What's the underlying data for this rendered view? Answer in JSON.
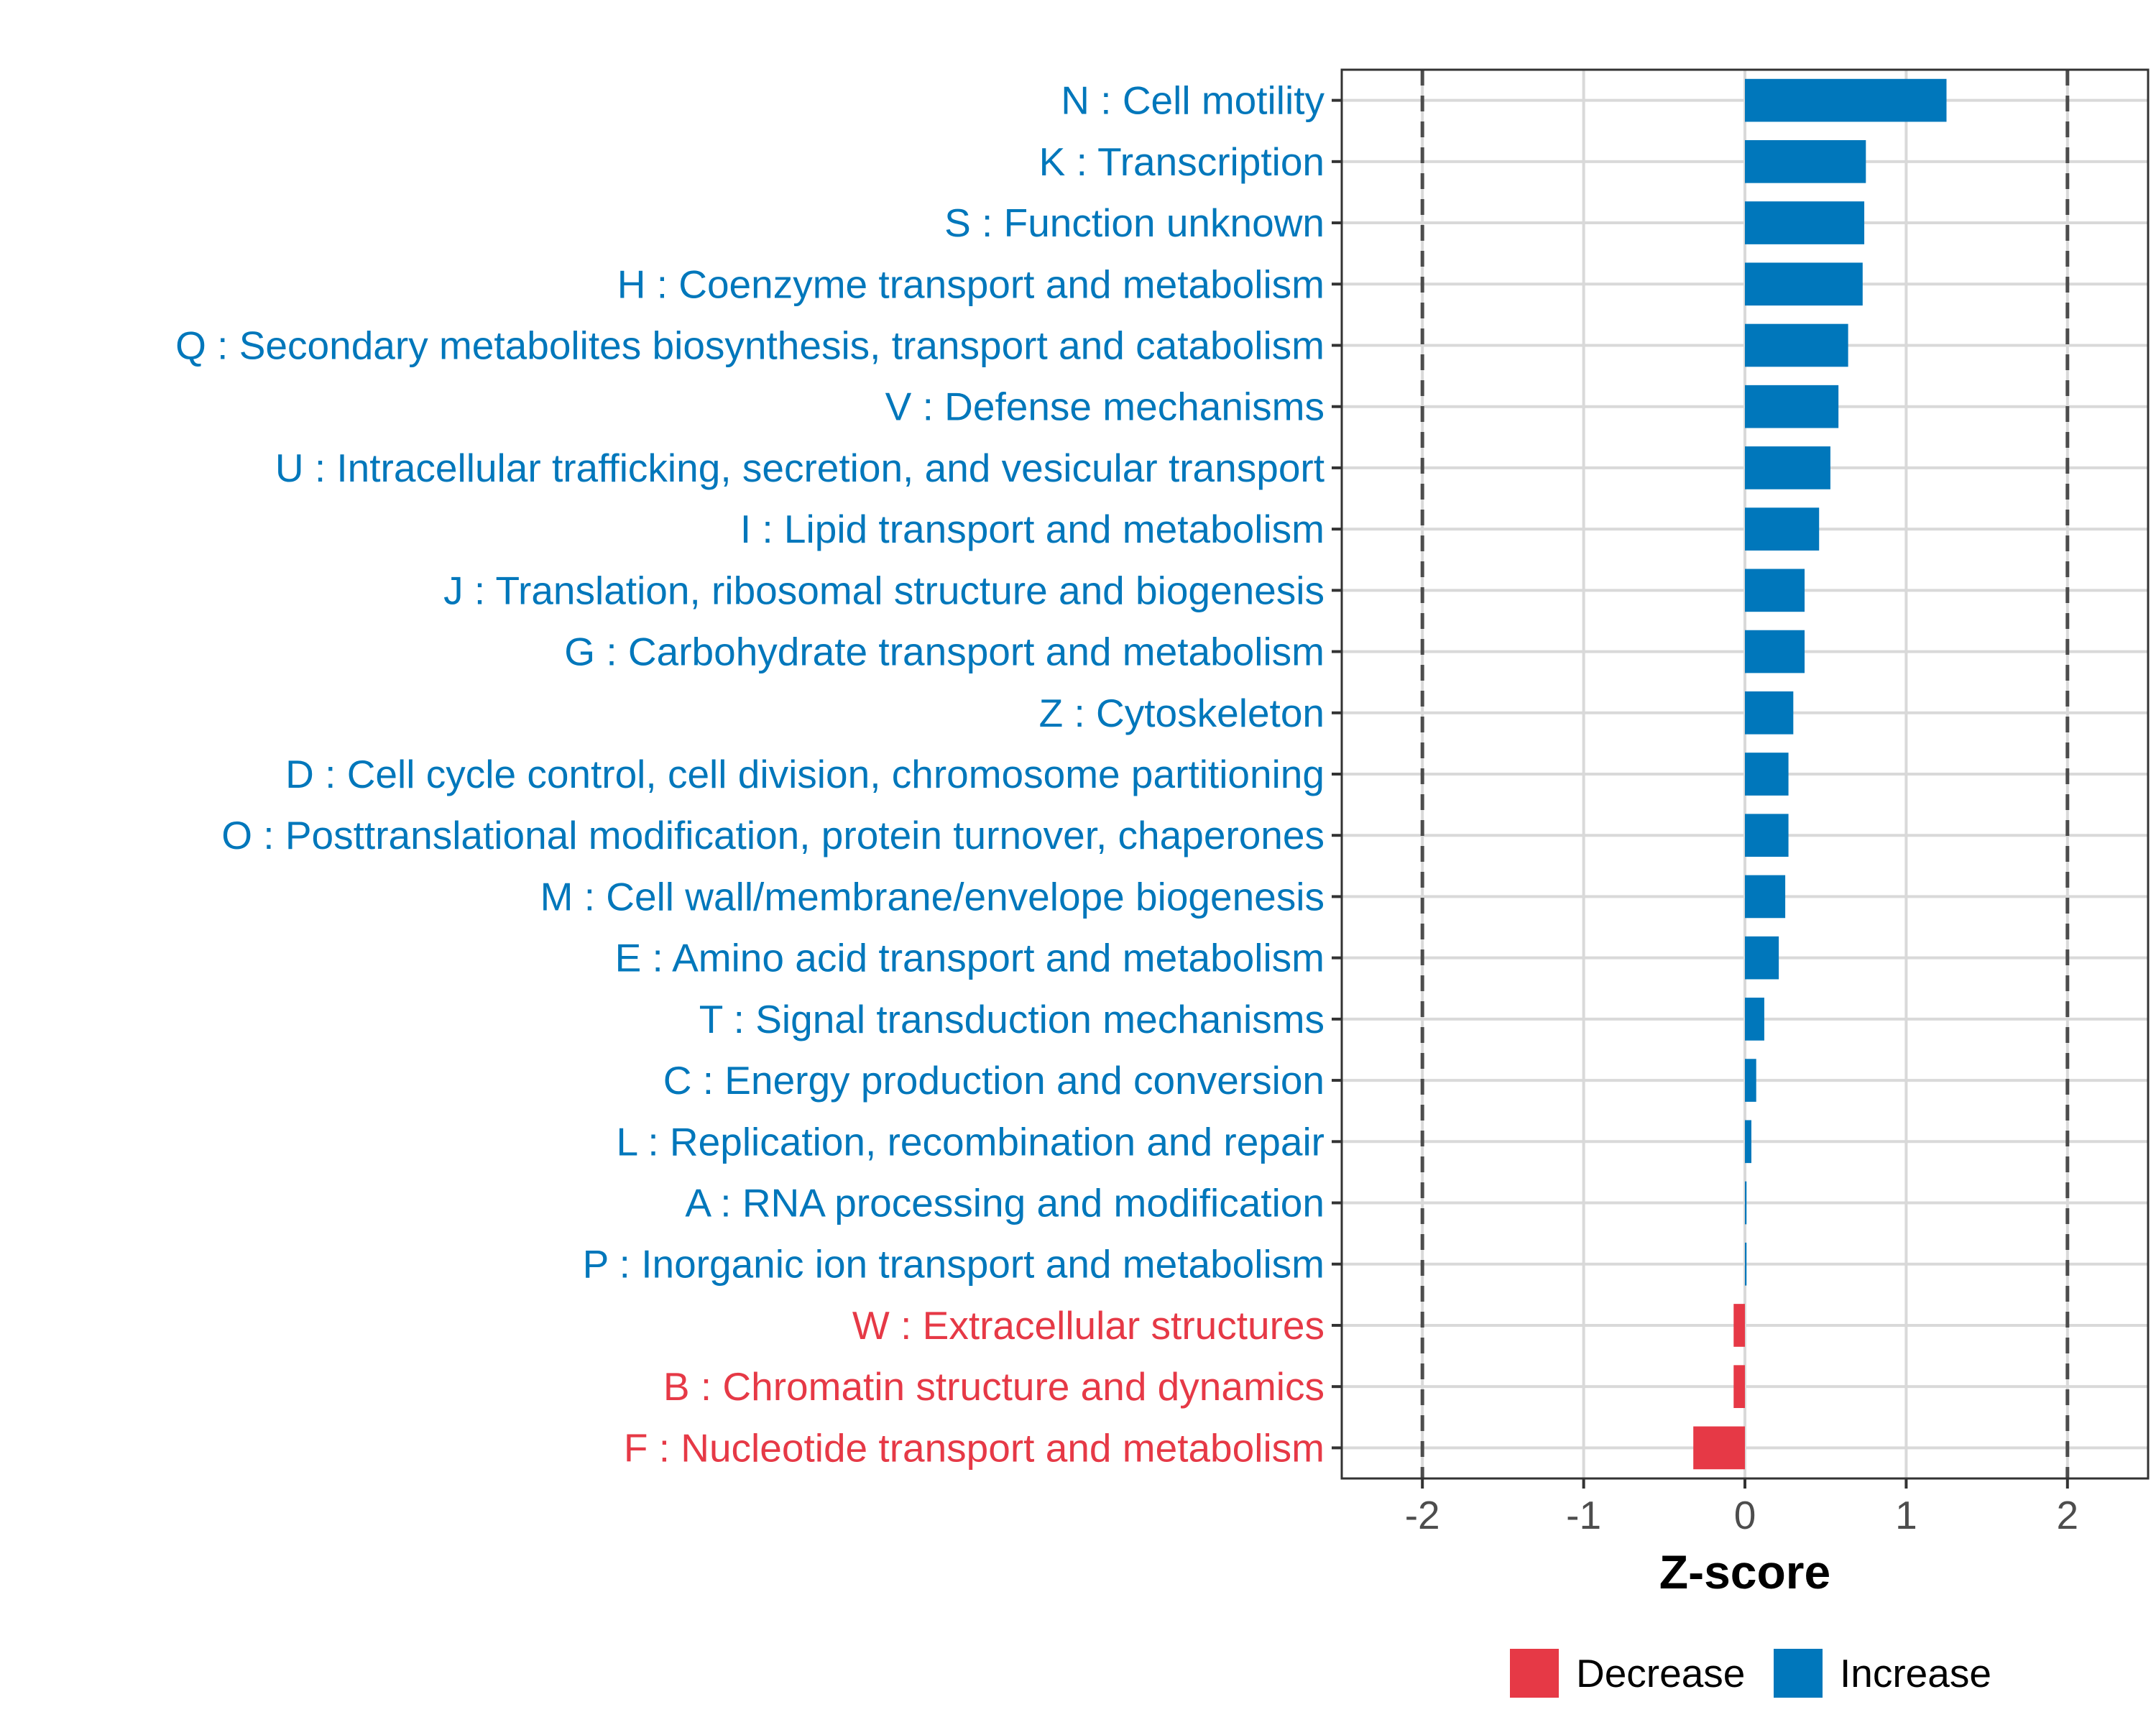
{
  "chart_data": {
    "type": "bar",
    "orientation": "horizontal",
    "title": "",
    "xlabel": "Z-score",
    "ylabel": "",
    "xlim": [
      -2.5,
      2.5
    ],
    "xticks": [
      -2,
      -1,
      0,
      1,
      2
    ],
    "xtick_labels": [
      "-2",
      "-1",
      "0",
      "1",
      "2"
    ],
    "reference_lines": [
      -2,
      2
    ],
    "grid": true,
    "legend": {
      "position": "bottom",
      "entries": [
        {
          "label": "Decrease",
          "color": "#E63946"
        },
        {
          "label": "Increase",
          "color": "#0077BB"
        }
      ]
    },
    "categories": [
      "N : Cell motility",
      "K : Transcription",
      "S : Function unknown",
      "H : Coenzyme transport and metabolism",
      "Q : Secondary metabolites biosynthesis, transport and catabolism",
      "V : Defense mechanisms",
      "U : Intracellular trafficking, secretion, and vesicular transport",
      "I : Lipid transport and metabolism",
      "J : Translation, ribosomal structure and biogenesis",
      "G : Carbohydrate transport and metabolism",
      "Z : Cytoskeleton",
      "D : Cell cycle control, cell division, chromosome partitioning",
      "O : Posttranslational modification, protein turnover, chaperones",
      "M : Cell wall/membrane/envelope biogenesis",
      "E : Amino acid transport and metabolism",
      "T : Signal transduction mechanisms",
      "C : Energy production and conversion",
      "L : Replication, recombination and repair",
      "A : RNA processing and modification",
      "P : Inorganic ion transport and metabolism",
      "W : Extracellular structures",
      "B : Chromatin structure and dynamics",
      "F : Nucleotide transport and metabolism"
    ],
    "values": [
      1.25,
      0.75,
      0.74,
      0.73,
      0.64,
      0.58,
      0.53,
      0.46,
      0.37,
      0.37,
      0.3,
      0.27,
      0.27,
      0.25,
      0.21,
      0.12,
      0.07,
      0.04,
      0.01,
      0.01,
      -0.07,
      -0.07,
      -0.32
    ],
    "directions": [
      "Increase",
      "Increase",
      "Increase",
      "Increase",
      "Increase",
      "Increase",
      "Increase",
      "Increase",
      "Increase",
      "Increase",
      "Increase",
      "Increase",
      "Increase",
      "Increase",
      "Increase",
      "Increase",
      "Increase",
      "Increase",
      "Increase",
      "Increase",
      "Decrease",
      "Decrease",
      "Decrease"
    ],
    "colors": {
      "Increase": "#0077BB",
      "Decrease": "#E63946",
      "grid": "#D9D9D9",
      "axis": "#333333",
      "refline": "#4D4D4D"
    }
  }
}
